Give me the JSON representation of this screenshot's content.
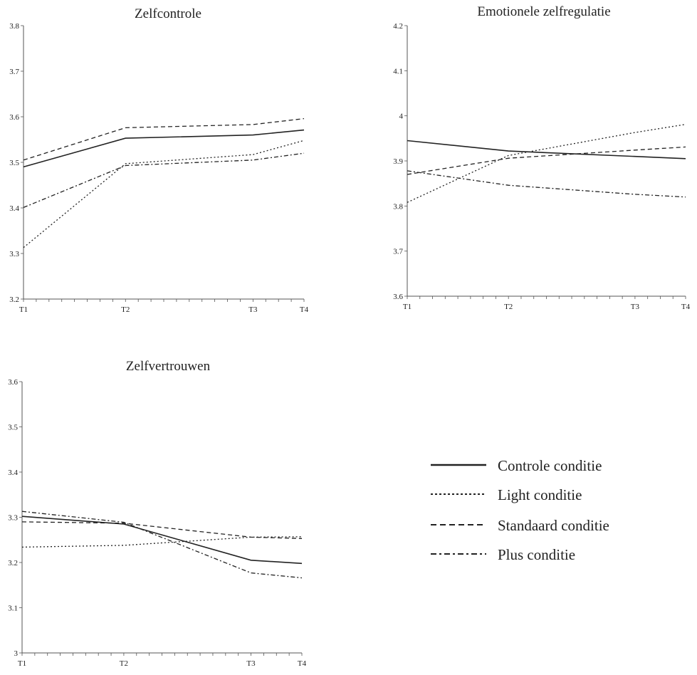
{
  "series_styles": [
    {
      "key": "controle",
      "dash": "",
      "width": 1.6
    },
    {
      "key": "light",
      "dash": "2,3",
      "width": 1.3
    },
    {
      "key": "standaard",
      "dash": "6,4",
      "width": 1.3
    },
    {
      "key": "plus",
      "dash": "6,3,2,3",
      "width": 1.3
    }
  ],
  "legend": {
    "items": [
      {
        "key": "controle",
        "label": "Controle conditie"
      },
      {
        "key": "light",
        "label": "Light conditie"
      },
      {
        "key": "standaard",
        "label": "Standaard conditie"
      },
      {
        "key": "plus",
        "label": "Plus conditie"
      }
    ]
  },
  "colors": {
    "line": "#222222",
    "axis": "#555555"
  },
  "chart_data": [
    {
      "id": "zelfcontrole",
      "type": "line",
      "title": "Zelfcontrole",
      "x": [
        1,
        5,
        10,
        12
      ],
      "x_ticks": [
        {
          "value": 1,
          "label": "T1"
        },
        {
          "value": 5,
          "label": "T2"
        },
        {
          "value": 10,
          "label": "T3"
        },
        {
          "value": 12,
          "label": "T4"
        }
      ],
      "xlim": [
        1,
        12
      ],
      "ylim": [
        3.2,
        3.8
      ],
      "y_ticks": [
        "3.2",
        "3.3",
        "3.4",
        "3.5",
        "3.6",
        "3.7",
        "3.8"
      ],
      "grid": false,
      "series": [
        {
          "key": "controle",
          "values": [
            3.49,
            3.553,
            3.56,
            3.571
          ]
        },
        {
          "key": "light",
          "values": [
            3.313,
            3.497,
            3.517,
            3.548
          ]
        },
        {
          "key": "standaard",
          "values": [
            3.505,
            3.576,
            3.583,
            3.596
          ]
        },
        {
          "key": "plus",
          "values": [
            3.401,
            3.493,
            3.505,
            3.52
          ]
        }
      ]
    },
    {
      "id": "emotionele-zelfregulatie",
      "type": "line",
      "title": "Emotionele zelfregulatie",
      "x": [
        1,
        5,
        10,
        12
      ],
      "x_ticks": [
        {
          "value": 1,
          "label": "T1"
        },
        {
          "value": 5,
          "label": "T2"
        },
        {
          "value": 10,
          "label": "T3"
        },
        {
          "value": 12,
          "label": "T4"
        }
      ],
      "xlim": [
        1,
        12
      ],
      "ylim": [
        3.6,
        4.2
      ],
      "y_ticks": [
        "3.6",
        "3.7",
        "3.8",
        "3.9",
        "4",
        "4.1",
        "4.2"
      ],
      "grid": false,
      "series": [
        {
          "key": "controle",
          "values": [
            3.945,
            3.922,
            3.91,
            3.905
          ]
        },
        {
          "key": "light",
          "values": [
            3.808,
            3.912,
            3.963,
            3.981
          ]
        },
        {
          "key": "standaard",
          "values": [
            3.87,
            3.906,
            3.924,
            3.931
          ]
        },
        {
          "key": "plus",
          "values": [
            3.878,
            3.846,
            3.826,
            3.82
          ]
        }
      ]
    },
    {
      "id": "zelfvertrouwen",
      "type": "line",
      "title": "Zelfvertrouwen",
      "x": [
        1,
        5,
        10,
        12
      ],
      "x_ticks": [
        {
          "value": 1,
          "label": "T1"
        },
        {
          "value": 5,
          "label": "T2"
        },
        {
          "value": 10,
          "label": "T3"
        },
        {
          "value": 12,
          "label": "T4"
        }
      ],
      "xlim": [
        1,
        12
      ],
      "ylim": [
        3.0,
        3.6
      ],
      "y_ticks": [
        "3",
        "3.1",
        "3.2",
        "3.3",
        "3.4",
        "3.5",
        "3.6"
      ],
      "grid": false,
      "series": [
        {
          "key": "controle",
          "values": [
            3.302,
            3.285,
            3.205,
            3.198
          ]
        },
        {
          "key": "light",
          "values": [
            3.234,
            3.238,
            3.256,
            3.257
          ]
        },
        {
          "key": "standaard",
          "values": [
            3.29,
            3.287,
            3.256,
            3.253
          ]
        },
        {
          "key": "plus",
          "values": [
            3.313,
            3.289,
            3.177,
            3.166
          ]
        }
      ]
    }
  ]
}
